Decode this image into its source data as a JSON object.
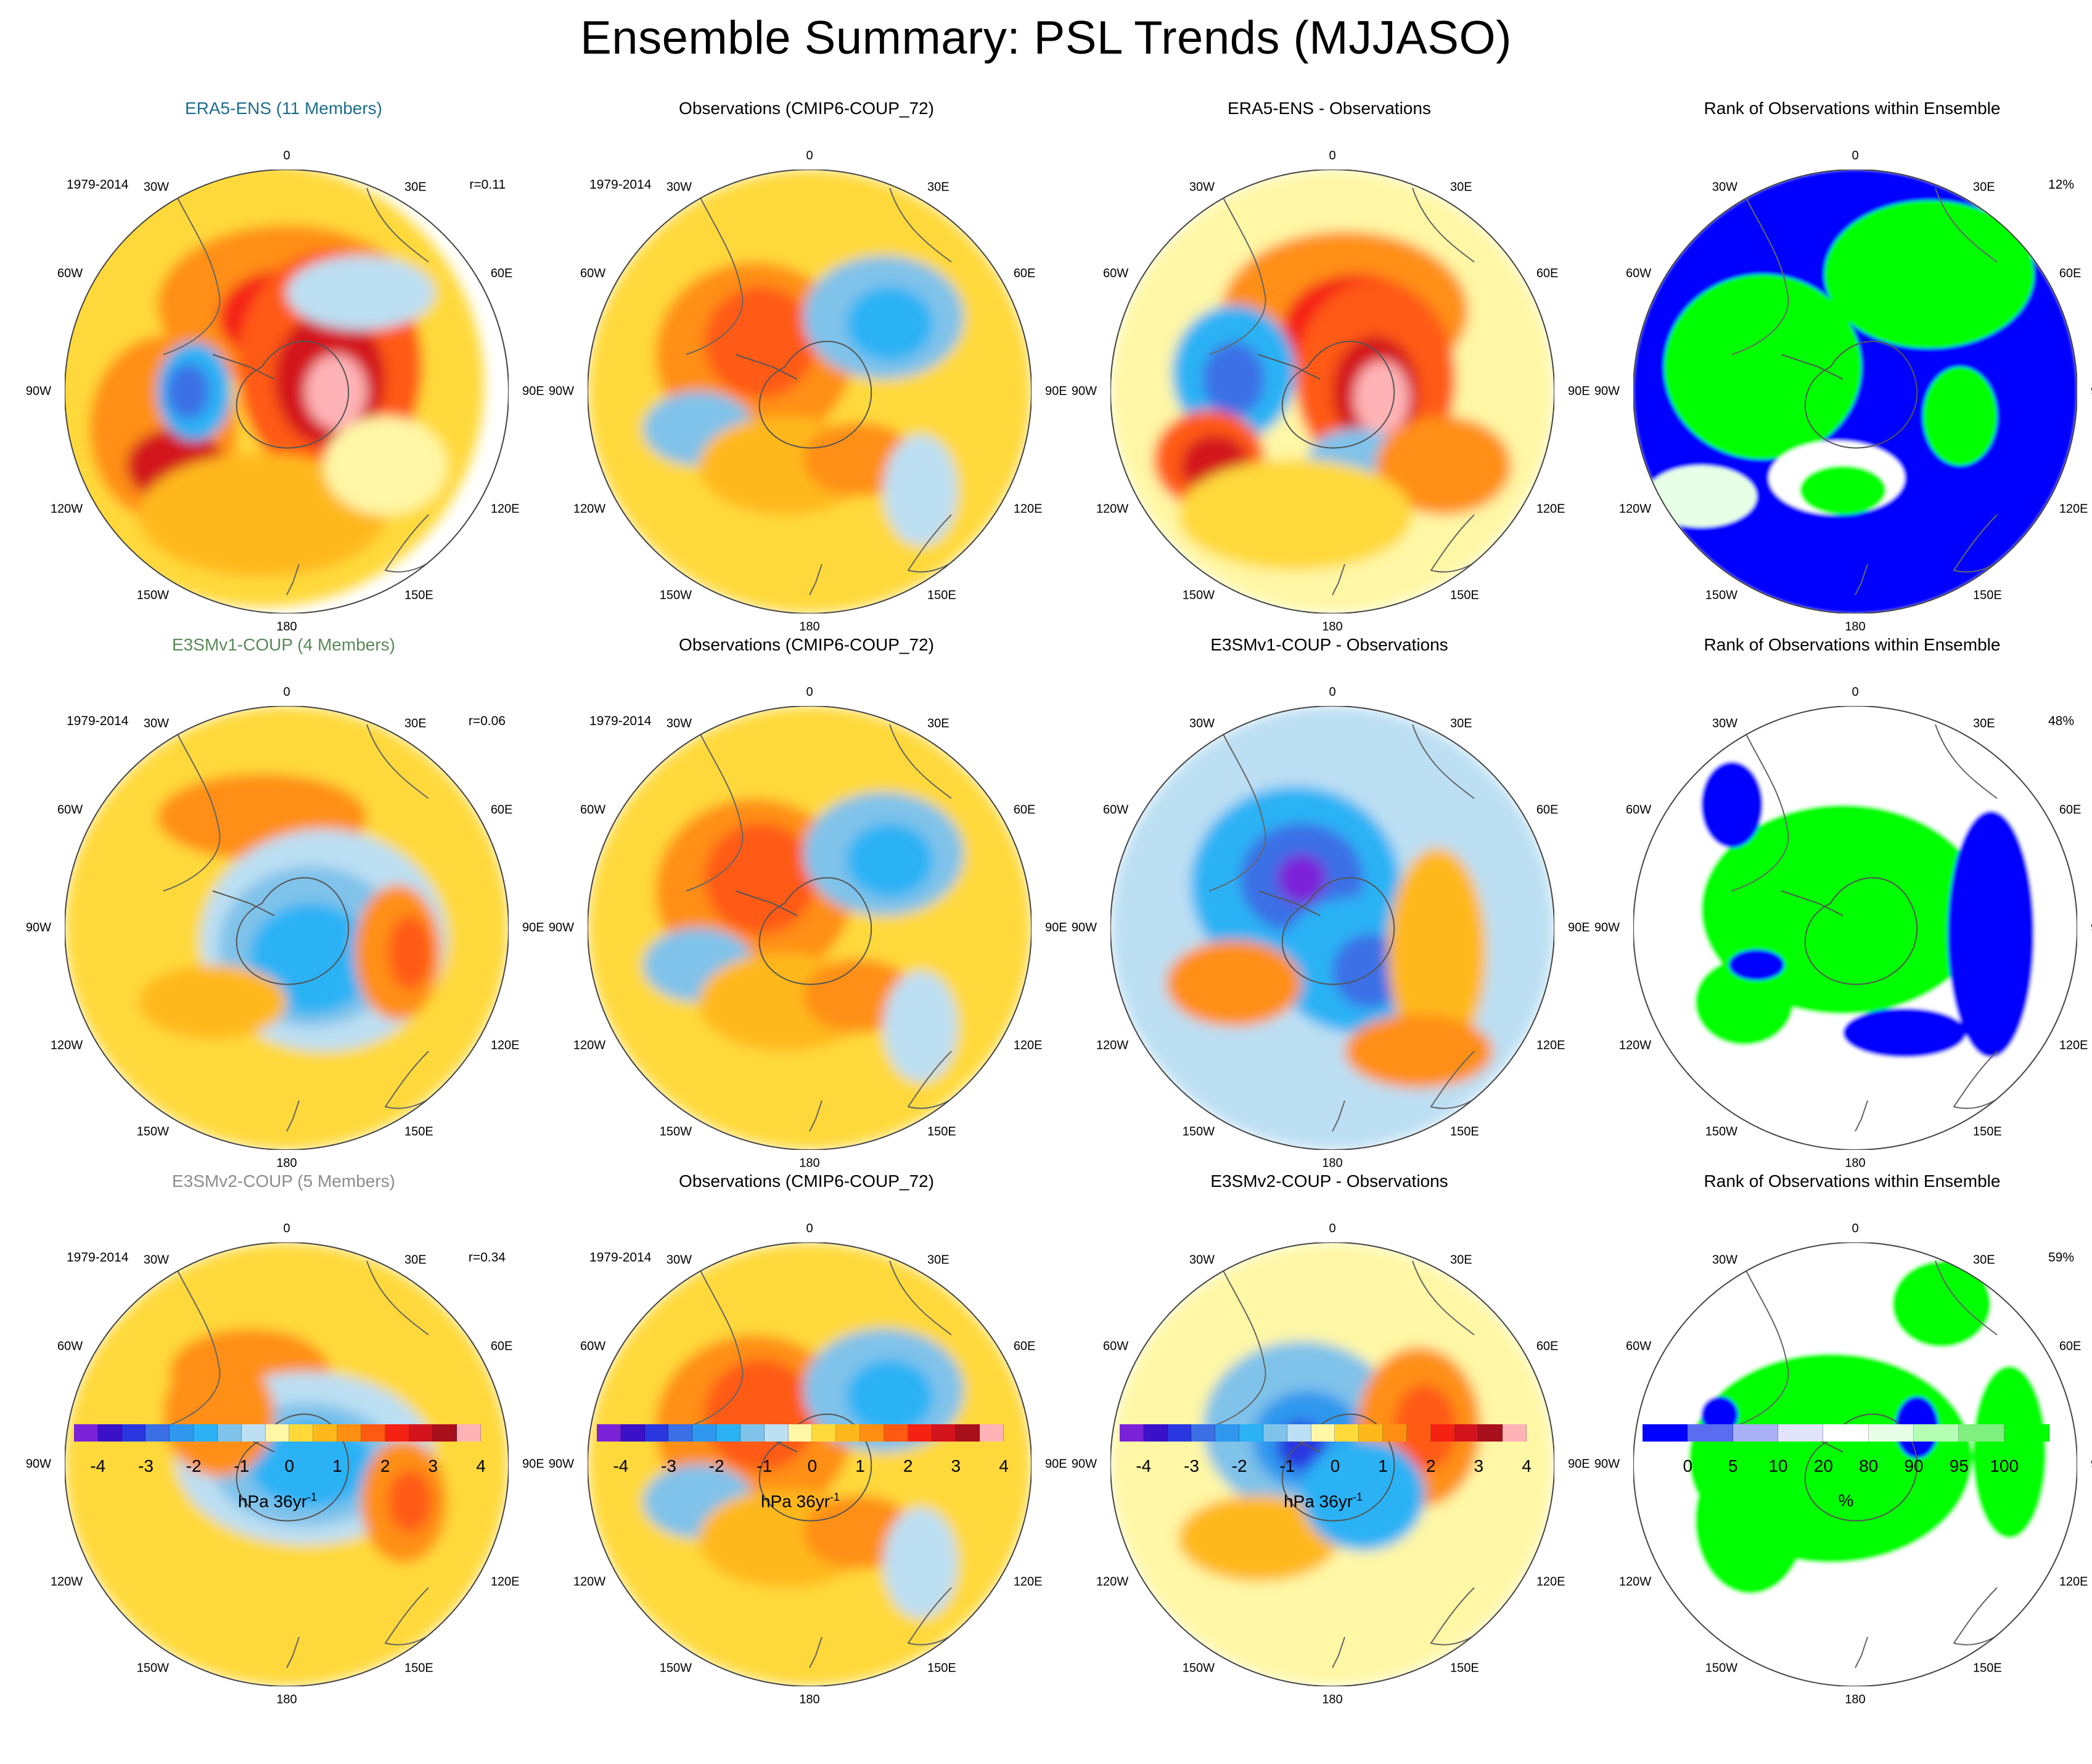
{
  "figure": {
    "title": "Ensemble Summary: PSL Trends (MJJASO)"
  },
  "colors": {
    "trend_levels": [
      "#7b22d8",
      "#3a10c8",
      "#2a37e0",
      "#3a6fe6",
      "#2f98ee",
      "#2ab2f5",
      "#7fc2ea",
      "#bcdff3",
      "#fff7a6",
      "#ffd93a",
      "#ffb81c",
      "#ff8f12",
      "#ff5a12",
      "#f52214",
      "#d3141c",
      "#a8101c",
      "#ffb3b6"
    ],
    "rank_levels": [
      "#0000ff",
      "#5a6cf0",
      "#aab0f5",
      "#e1e4fa",
      "#ffffff",
      "#e6ffe6",
      "#b4ffb4",
      "#7ff07f",
      "#00ff00"
    ],
    "title_era5": "#1e6e8c",
    "title_e3smv1": "#5a8a5a",
    "title_e3smv2": "#8c8c8c"
  },
  "icons": {
    "map_style": "polar-stereographic-map-icon"
  },
  "map_labels": {
    "lon_0": "0",
    "lon_30w": "30W",
    "lon_30e": "30E",
    "lon_60w": "60W",
    "lon_60e": "60E",
    "lon_90w": "90W",
    "lon_90e": "90E",
    "lon_120w": "120W",
    "lon_120e": "120E",
    "lon_150w": "150W",
    "lon_150e": "150E",
    "lon_180": "180"
  },
  "rows": [
    {
      "model_title": "ERA5-ENS (11 Members)",
      "obs_title": "Observations (CMIP6-COUP_72)",
      "diff_title": "ERA5-ENS - Observations",
      "rank_title": "Rank of Observations within Ensemble",
      "period": "1979-2014",
      "obs_period": "1979-2014",
      "r_value": "r=0.11",
      "rank_percent": "12%"
    },
    {
      "model_title": "E3SMv1-COUP (4 Members)",
      "obs_title": "Observations (CMIP6-COUP_72)",
      "diff_title": "E3SMv1-COUP - Observations",
      "rank_title": "Rank of Observations within Ensemble",
      "period": "1979-2014",
      "obs_period": "1979-2014",
      "r_value": "r=0.06",
      "rank_percent": "48%"
    },
    {
      "model_title": "E3SMv2-COUP (5 Members)",
      "obs_title": "Observations (CMIP6-COUP_72)",
      "diff_title": "E3SMv2-COUP - Observations",
      "rank_title": "Rank of Observations within Ensemble",
      "period": "1979-2014",
      "obs_period": "1979-2014",
      "r_value": "r=0.34",
      "rank_percent": "59%"
    }
  ],
  "colorbars": {
    "trend": {
      "ticks": [
        "-4",
        "-3",
        "-2",
        "-1",
        "0",
        "1",
        "2",
        "3",
        "4"
      ],
      "unit_label": "hPa 36yr",
      "unit_exp": "-1"
    },
    "rank": {
      "ticks": [
        "0",
        "5",
        "10",
        "20",
        "80",
        "90",
        "95",
        "100"
      ],
      "unit_label": "%"
    }
  }
}
